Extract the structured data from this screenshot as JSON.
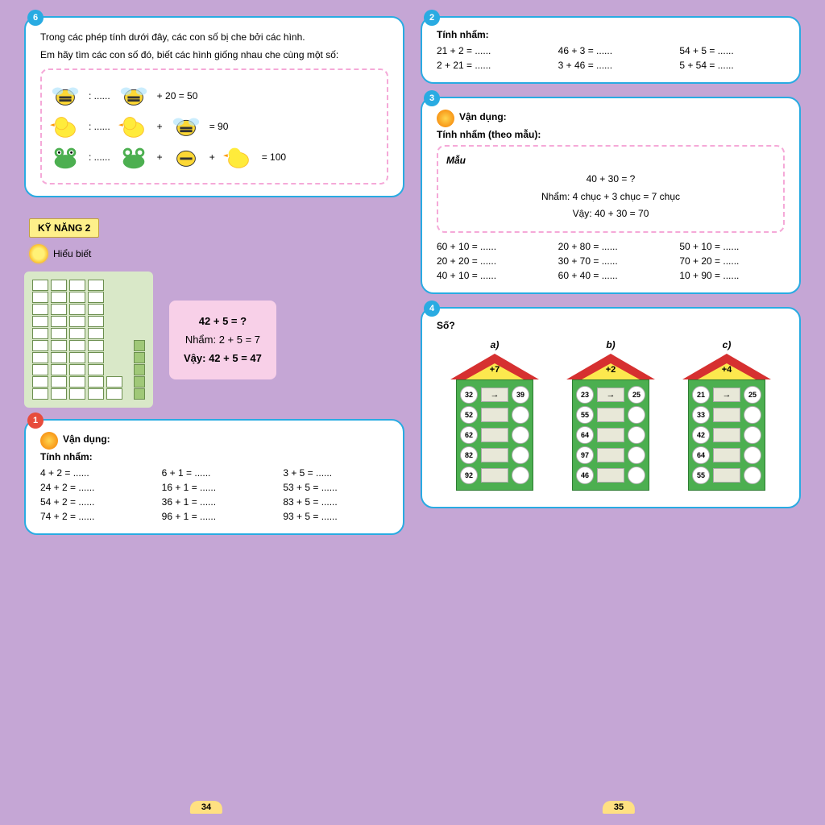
{
  "page_left_num": "34",
  "page_right_num": "35",
  "bg_color": "#c5a6d5",
  "box_border": "#29abe2",
  "badge_colors": {
    "blue": "#29abe2",
    "red": "#e74c3c"
  },
  "ex6": {
    "badge": "6",
    "line1": "Trong các phép tính dưới đây, các con số bị che bởi các hình.",
    "line2": "Em hãy tìm các con số đó, biết các hình giống nhau che cùng một số:",
    "rows": [
      {
        "left": ": ......",
        "eq": "+    20    =  50"
      },
      {
        "left": ": ......",
        "eq": "=  90"
      },
      {
        "left": ": ......",
        "eq": "=  100"
      }
    ]
  },
  "skill2": "KỸ NĂNG 2",
  "hieubiet": "Hiểu biết",
  "pink_card": {
    "l1": "42 + 5 = ?",
    "l2": "Nhẩm: 2 + 5 = 7",
    "l3": "Vậy: 42 + 5 = 47"
  },
  "ex1": {
    "badge": "1",
    "title": "Vận dụng:",
    "sub": "Tính nhẩm:",
    "grid": [
      "4 + 2 = ......",
      "6 + 1 = ......",
      "3 + 5 = ......",
      "24 + 2 = ......",
      "16 + 1 = ......",
      "53 + 5 = ......",
      "54 + 2 = ......",
      "36 + 1 = ......",
      "83 + 5 = ......",
      "74 + 2 = ......",
      "96 + 1 = ......",
      "93 + 5 = ......"
    ]
  },
  "ex2": {
    "badge": "2",
    "title": "Tính nhẩm:",
    "grid": [
      "21 + 2 = ......",
      "46 + 3 = ......",
      "54 + 5 = ......",
      "2 + 21 = ......",
      "3 + 46 = ......",
      "5 + 54 = ......"
    ]
  },
  "ex3": {
    "badge": "3",
    "title": "Vận dụng:",
    "sub": "Tính nhẩm (theo mẫu):",
    "mau": "Mẫu",
    "m1": "40 + 30 = ?",
    "m2": "Nhẩm: 4 chục + 3 chục = 7 chục",
    "m3": "Vậy: 40 + 30 = 70",
    "grid": [
      "60 + 10 = ......",
      "20 + 80 = ......",
      "50 + 10 = ......",
      "20 + 20 = ......",
      "30 + 70 = ......",
      "70 + 20 = ......",
      "40 + 10 = ......",
      "60 + 40 = ......",
      "10 + 90 = ......"
    ]
  },
  "ex4": {
    "badge": "4",
    "title": "Số?",
    "houses": [
      {
        "label": "a)",
        "roof": "+7",
        "rows": [
          [
            "32",
            "39"
          ],
          [
            "52",
            ""
          ],
          [
            "62",
            ""
          ],
          [
            "82",
            ""
          ],
          [
            "92",
            ""
          ]
        ]
      },
      {
        "label": "b)",
        "roof": "+2",
        "rows": [
          [
            "23",
            "25"
          ],
          [
            "55",
            ""
          ],
          [
            "64",
            ""
          ],
          [
            "97",
            ""
          ],
          [
            "46",
            ""
          ]
        ]
      },
      {
        "label": "c)",
        "roof": "+4",
        "rows": [
          [
            "21",
            "25"
          ],
          [
            "33",
            ""
          ],
          [
            "42",
            ""
          ],
          [
            "64",
            ""
          ],
          [
            "55",
            ""
          ]
        ]
      }
    ]
  }
}
